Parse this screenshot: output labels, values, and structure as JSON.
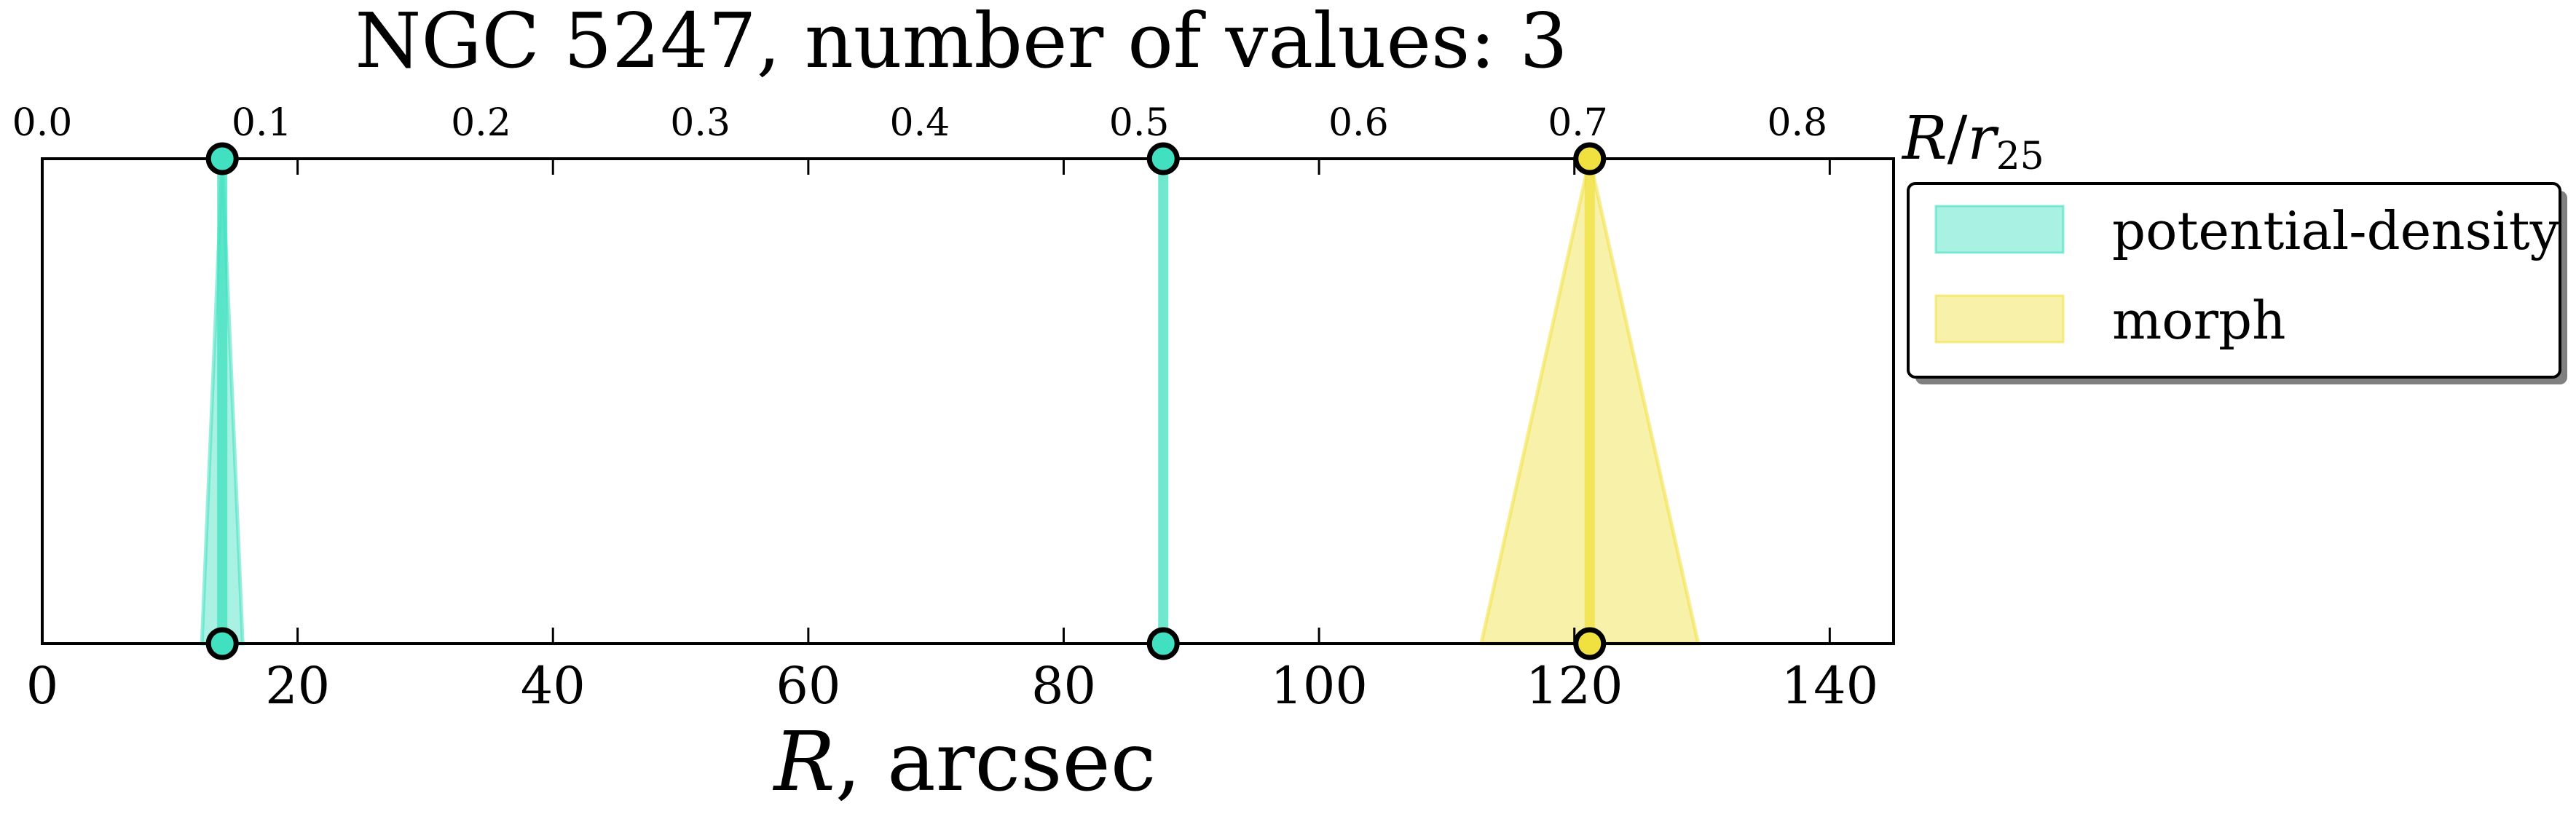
{
  "chart_data": {
    "type": "area",
    "title": "NGC 5247, number of values: 3",
    "xlabel": "R, arcsec",
    "xlabel_math": "R",
    "xlabel_rest": ", arcsec",
    "top_xlabel": "R/r25",
    "xlim": [
      0,
      145
    ],
    "top_xlim": [
      0,
      0.8439
    ],
    "xticks": [
      0,
      20,
      40,
      60,
      80,
      100,
      120,
      140
    ],
    "top_xticks": [
      0.0,
      0.1,
      0.2,
      0.3,
      0.4,
      0.5,
      0.6,
      0.7,
      0.8
    ],
    "top_xtick_labels": [
      "0.0",
      "0.1",
      "0.2",
      "0.3",
      "0.4",
      "0.5",
      "0.6",
      "0.7",
      "0.8"
    ],
    "yticks_visible": false,
    "grid": false,
    "legend_position": "outside-right-top",
    "series": [
      {
        "name": "potential-density",
        "color": "#40e0c0",
        "markers": [
          14.1,
          87.8
        ],
        "spreads": [
          {
            "center": 14.1,
            "halfwidth_base": 1.6
          },
          {
            "center": 87.8,
            "halfwidth_base": 0.0
          }
        ]
      },
      {
        "name": "morph",
        "color": "#f0e040",
        "markers": [
          121.2
        ],
        "spreads": [
          {
            "center": 121.2,
            "halfwidth_base": 8.5
          }
        ]
      }
    ]
  }
}
